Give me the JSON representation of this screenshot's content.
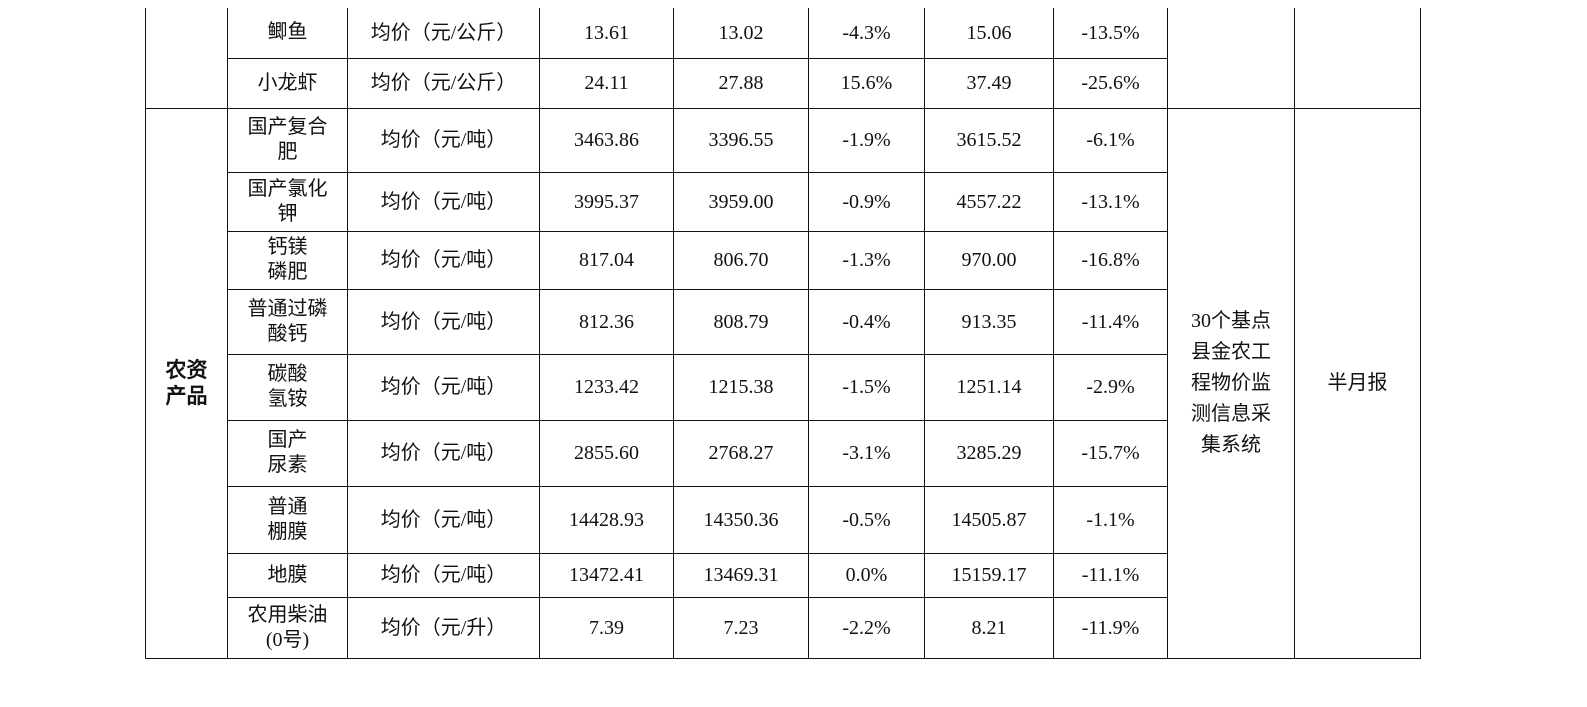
{
  "table": {
    "groups": [
      {
        "category": "",
        "source": "",
        "frequency": "",
        "rows": [
          {
            "name": "鲫鱼",
            "unit": "均价（元/公斤）",
            "v1": "13.61",
            "v2": "13.02",
            "chg1": "-4.3%",
            "v3": "15.06",
            "chg2": "-13.5%"
          },
          {
            "name": "小龙虾",
            "unit": "均价（元/公斤）",
            "v1": "24.11",
            "v2": "27.88",
            "chg1": "15.6%",
            "v3": "37.49",
            "chg2": "-25.6%"
          }
        ]
      },
      {
        "category": "农资产品",
        "source": "30个基点县金农工程物价监测信息采集系统",
        "frequency": "半月报",
        "rows": [
          {
            "name": "国产复合肥",
            "unit": "均价（元/吨）",
            "v1": "3463.86",
            "v2": "3396.55",
            "chg1": "-1.9%",
            "v3": "3615.52",
            "chg2": "-6.1%"
          },
          {
            "name": "国产氯化钾",
            "unit": "均价（元/吨）",
            "v1": "3995.37",
            "v2": "3959.00",
            "chg1": "-0.9%",
            "v3": "4557.22",
            "chg2": "-13.1%"
          },
          {
            "name": "钙镁磷肥",
            "unit": "均价（元/吨）",
            "v1": "817.04",
            "v2": "806.70",
            "chg1": "-1.3%",
            "v3": "970.00",
            "chg2": "-16.8%"
          },
          {
            "name": "普通过磷酸钙",
            "unit": "均价（元/吨）",
            "v1": "812.36",
            "v2": "808.79",
            "chg1": "-0.4%",
            "v3": "913.35",
            "chg2": "-11.4%"
          },
          {
            "name": "碳酸氢铵",
            "unit": "均价（元/吨）",
            "v1": "1233.42",
            "v2": "1215.38",
            "chg1": "-1.5%",
            "v3": "1251.14",
            "chg2": "-2.9%"
          },
          {
            "name": "国产尿素",
            "unit": "均价（元/吨）",
            "v1": "2855.60",
            "v2": "2768.27",
            "chg1": "-3.1%",
            "v3": "3285.29",
            "chg2": "-15.7%"
          },
          {
            "name": "普通棚膜",
            "unit": "均价（元/吨）",
            "v1": "14428.93",
            "v2": "14350.36",
            "chg1": "-0.5%",
            "v3": "14505.87",
            "chg2": "-1.1%"
          },
          {
            "name": "地膜",
            "unit": "均价（元/吨）",
            "v1": "13472.41",
            "v2": "13469.31",
            "chg1": "0.0%",
            "v3": "15159.17",
            "chg2": "-11.1%"
          },
          {
            "name": "农用柴油(0号)",
            "unit": "均价（元/升）",
            "v1": "7.39",
            "v2": "7.23",
            "chg1": "-2.2%",
            "v3": "8.21",
            "chg2": "-11.9%"
          }
        ]
      }
    ]
  }
}
